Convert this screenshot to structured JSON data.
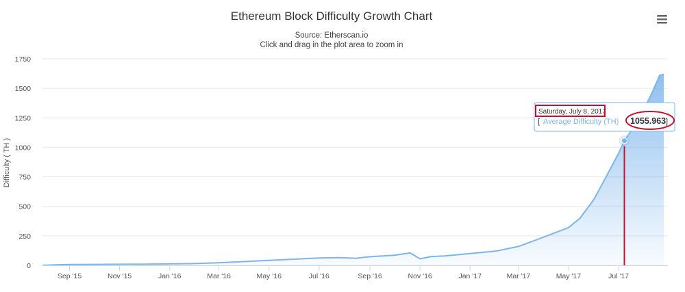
{
  "chart_data": {
    "type": "area",
    "title": "Ethereum Block Difficulty Growth Chart",
    "subtitle": "Source: Etherscan.io",
    "subtitle2": "Click and drag in the plot area to zoom in",
    "xlabel": "",
    "ylabel": "Difficulty ( TH )",
    "ylim": [
      0,
      1750
    ],
    "yticks": [
      0,
      250,
      500,
      750,
      1000,
      1250,
      1500,
      1750
    ],
    "xlim": [
      "2015-07-30",
      "2017-08-30"
    ],
    "xticks": [
      {
        "date": "2015-09-01",
        "label": "Sep '15"
      },
      {
        "date": "2015-11-01",
        "label": "Nov '15"
      },
      {
        "date": "2016-01-01",
        "label": "Jan '16"
      },
      {
        "date": "2016-03-01",
        "label": "Mar '16"
      },
      {
        "date": "2016-05-01",
        "label": "May '16"
      },
      {
        "date": "2016-07-01",
        "label": "Jul '16"
      },
      {
        "date": "2016-09-01",
        "label": "Sep '16"
      },
      {
        "date": "2016-11-01",
        "label": "Nov '16"
      },
      {
        "date": "2017-01-01",
        "label": "Jan '17"
      },
      {
        "date": "2017-03-01",
        "label": "Mar '17"
      },
      {
        "date": "2017-05-01",
        "label": "May '17"
      },
      {
        "date": "2017-07-01",
        "label": "Jul '17"
      }
    ],
    "grid": true,
    "series": [
      {
        "name": "Average Difficulty (TH)",
        "color": "#7cb5ec",
        "x": [
          "2015-07-30",
          "2015-08-15",
          "2015-09-01",
          "2015-10-01",
          "2015-11-01",
          "2015-12-01",
          "2016-01-01",
          "2016-02-01",
          "2016-03-01",
          "2016-04-01",
          "2016-05-01",
          "2016-06-01",
          "2016-07-01",
          "2016-07-25",
          "2016-08-15",
          "2016-09-01",
          "2016-10-01",
          "2016-10-20",
          "2016-11-01",
          "2016-11-15",
          "2016-12-01",
          "2017-01-01",
          "2017-02-01",
          "2017-03-01",
          "2017-04-01",
          "2017-05-01",
          "2017-05-15",
          "2017-06-01",
          "2017-06-15",
          "2017-07-01",
          "2017-07-08",
          "2017-07-20",
          "2017-08-01",
          "2017-08-10",
          "2017-08-20",
          "2017-08-25"
        ],
        "values": [
          0,
          4,
          7,
          8,
          9,
          10,
          12,
          15,
          22,
          32,
          42,
          52,
          62,
          65,
          60,
          73,
          85,
          105,
          55,
          75,
          80,
          100,
          120,
          160,
          240,
          320,
          400,
          560,
          740,
          950,
          1056,
          1180,
          1330,
          1450,
          1610,
          1620
        ]
      }
    ],
    "tooltip": {
      "date": "Saturday, July 8, 2017",
      "series": "Average Difficulty (TH)",
      "value": "1055.963",
      "x": "2017-07-08",
      "y": 1055.963
    }
  },
  "icons": {
    "menu": "hamburger-menu-icon"
  }
}
